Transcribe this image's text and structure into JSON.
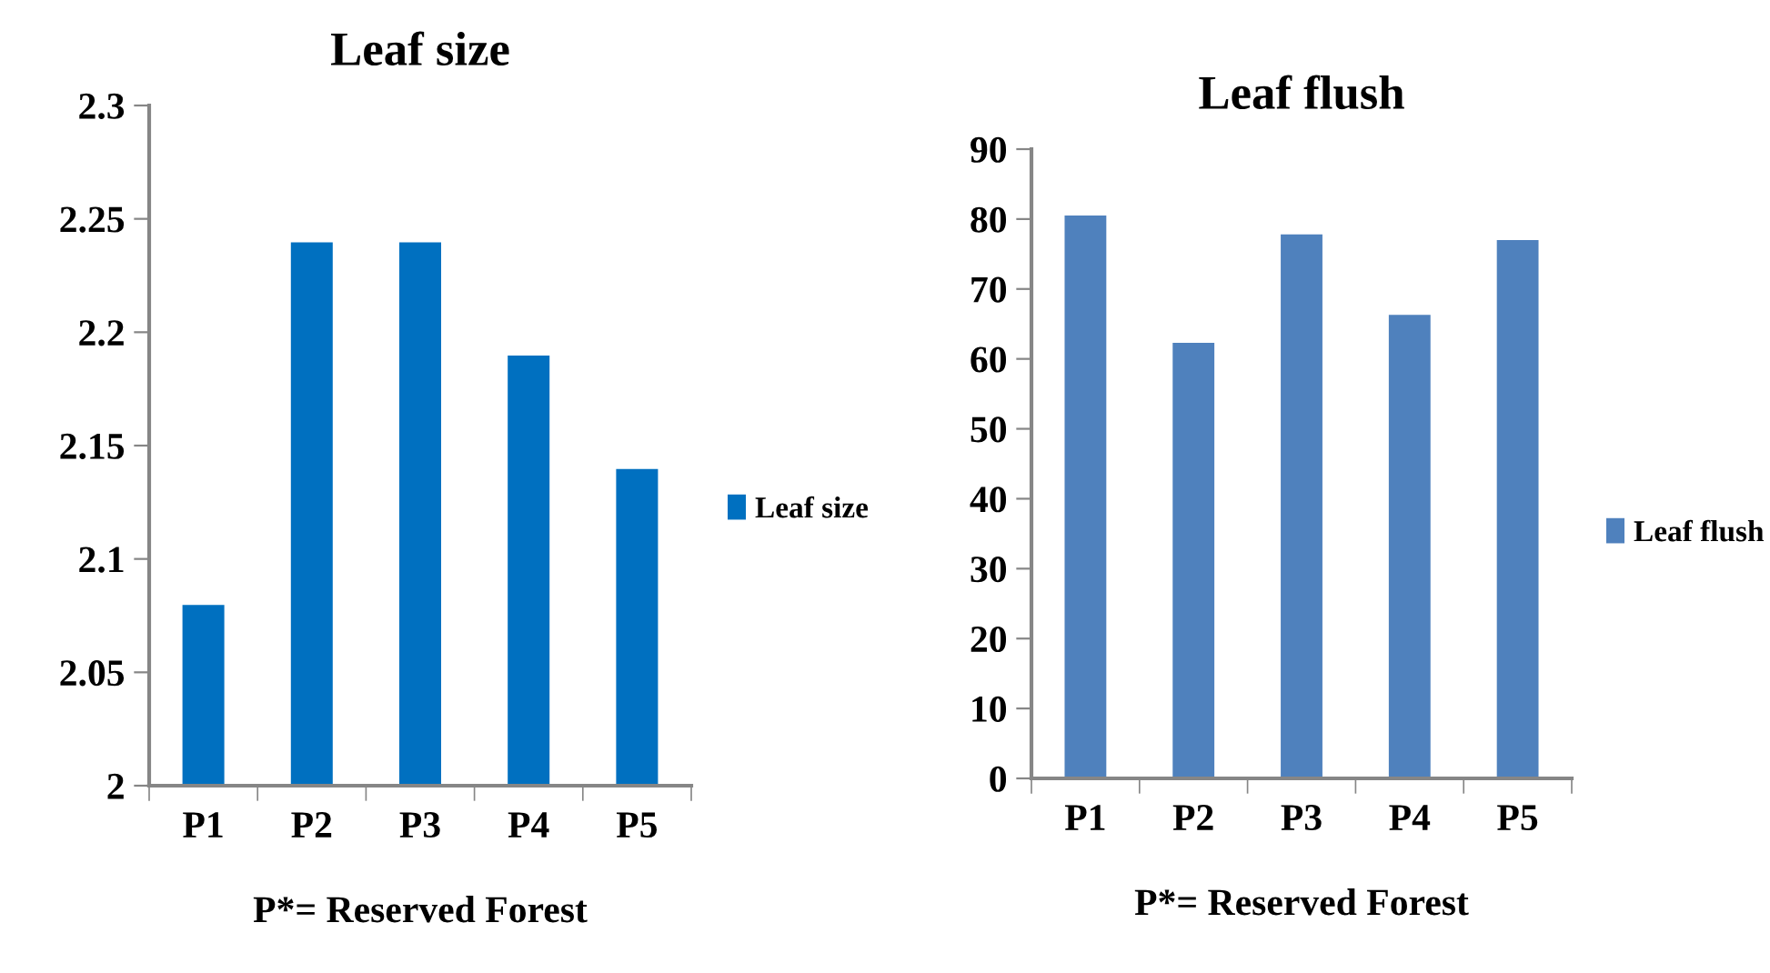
{
  "chart_data": [
    {
      "type": "bar",
      "title": "Leaf size",
      "xlabel": "P*= Reserved Forest",
      "categories": [
        "P1",
        "P2",
        "P3",
        "P4",
        "P5"
      ],
      "series": [
        {
          "name": "Leaf size",
          "color": "#0070c0",
          "values": [
            2.08,
            2.24,
            2.24,
            2.19,
            2.14
          ]
        }
      ],
      "ylim": [
        2,
        2.3
      ],
      "yticks": [
        {
          "value": 2,
          "label": "2"
        },
        2.05,
        2.1,
        2.15,
        2.2,
        2.25,
        2.3
      ],
      "grid": false,
      "legend": "right"
    },
    {
      "type": "bar",
      "title": "Leaf flush",
      "xlabel": "P*= Reserved Forest",
      "categories": [
        "P1",
        "P2",
        "P3",
        "P4",
        "P5"
      ],
      "series": [
        {
          "name": "Leaf flush",
          "color": "#4f81bd",
          "values": [
            80.6,
            62.4,
            77.9,
            66.4,
            77.1
          ]
        }
      ],
      "ylim": [
        0,
        90
      ],
      "yticks": [
        0,
        10,
        20,
        30,
        40,
        50,
        60,
        70,
        80,
        90
      ],
      "grid": false,
      "legend": "right"
    }
  ]
}
